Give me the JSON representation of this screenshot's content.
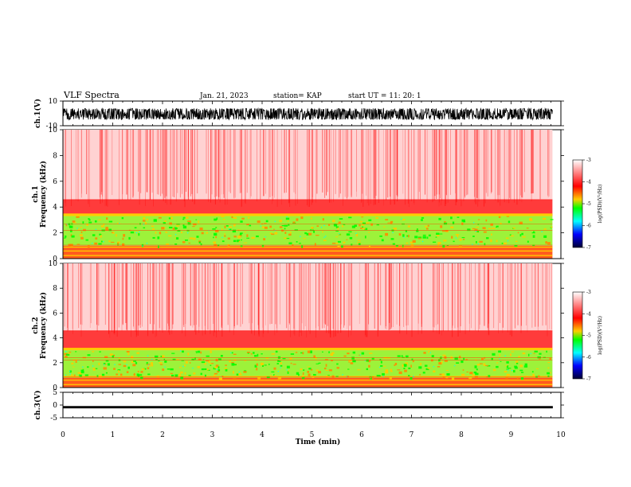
{
  "header": {
    "title": "VLF Spectra",
    "date": "Jan. 21, 2023",
    "station": "station= KAP",
    "start": "start  UT  =   11: 20: 1"
  },
  "chart_data": [
    {
      "panel": "ch1-waveform",
      "type": "line",
      "ylabel": "ch.1(V)",
      "ylim": [
        -10,
        10
      ],
      "y_ticks": [
        "10",
        "-10"
      ],
      "x_range_min": [
        0,
        9.83
      ],
      "series": [
        {
          "signal_band_V": [
            -5,
            4
          ]
        }
      ]
    },
    {
      "panel": "ch1-spectrogram",
      "type": "heatmap",
      "ylabel": "ch.1\nFrequency  (kHz)",
      "ylim": [
        0,
        10
      ],
      "y_ticks": [
        "0",
        "2",
        "4",
        "6",
        "8",
        "10"
      ],
      "dominant_band_kHz": [
        1.0,
        3.3
      ],
      "colorbar": {
        "label": "log(PSD)(V²/Hz)",
        "range": [
          -7,
          -3
        ],
        "ticks": [
          "-3",
          "-4",
          "-5",
          "-6",
          "-7"
        ]
      }
    },
    {
      "panel": "ch2-spectrogram",
      "type": "heatmap",
      "ylabel": "ch.2\nFrequency  (kHz)",
      "ylim": [
        0,
        10
      ],
      "y_ticks": [
        "0",
        "2",
        "4",
        "6",
        "8",
        "10"
      ],
      "dominant_band_kHz": [
        0.8,
        3.0
      ],
      "colorbar": {
        "label": "log(PSD)(V²/Hz)",
        "range": [
          -7,
          -3
        ],
        "ticks": [
          "-3",
          "-4",
          "-5",
          "-6",
          "-7"
        ]
      }
    },
    {
      "panel": "ch3-waveform",
      "type": "line",
      "ylabel": "ch.3(V)",
      "ylim": [
        -5,
        5
      ],
      "y_ticks": [
        "5",
        "0",
        "-5"
      ],
      "series": [
        {
          "signal_band_V": [
            -1.3,
            -0.4
          ]
        }
      ]
    }
  ],
  "x_axis": {
    "label": "Time  (min)",
    "range": [
      0,
      10
    ],
    "ticks": [
      "0",
      "1",
      "2",
      "3",
      "4",
      "5",
      "6",
      "7",
      "8",
      "9",
      "10"
    ]
  },
  "colors": {
    "red": "#ff0000",
    "yellow": "#ffcc00",
    "green": "#00ff00",
    "cyan": "#00ffff",
    "blue": "#0000ff",
    "navy": "#000033"
  }
}
